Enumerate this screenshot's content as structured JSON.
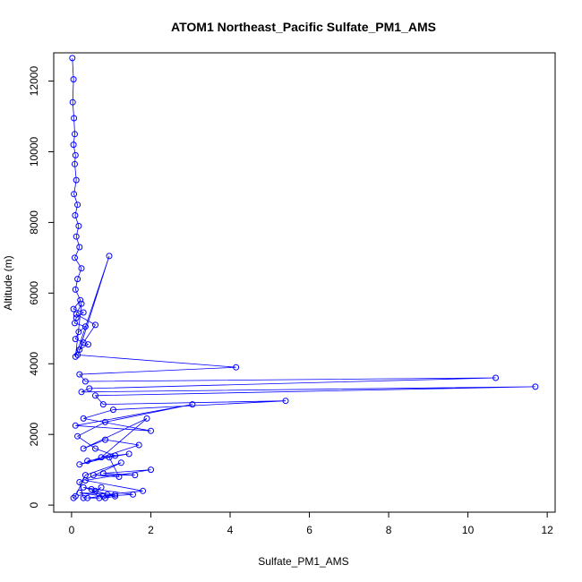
{
  "chart_data": {
    "type": "line",
    "title": "ATOM1 Northeast_Pacific Sulfate_PM1_AMS",
    "xlabel": "Sulfate_PM1_AMS",
    "ylabel": "Altitude (m)",
    "xlim": [
      -0.45,
      12.2
    ],
    "ylim": [
      -200,
      12800
    ],
    "xticks": [
      0,
      2,
      4,
      6,
      8,
      10,
      12
    ],
    "yticks": [
      0,
      2000,
      4000,
      6000,
      8000,
      10000,
      12000
    ],
    "grid": false,
    "legend": "none",
    "series_color": "#0000ff",
    "series": [
      {
        "x": [
          0.02,
          0.05,
          0.03,
          0.06,
          0.08,
          0.05,
          0.1,
          0.08,
          0.12,
          0.06,
          0.15,
          0.09,
          0.18,
          0.12,
          0.2,
          0.08,
          0.25,
          0.15,
          0.1,
          0.22,
          0.05,
          0.3,
          0.12,
          0.08,
          0.35,
          0.18,
          0.1,
          0.42,
          0.2,
          0.95,
          0.1,
          0.25,
          0.12,
          0.6,
          0.3,
          0.15,
          4.15,
          0.2,
          0.35,
          10.7,
          0.45,
          0.25,
          11.7,
          0.6,
          0.8,
          5.4,
          1.05,
          0.3,
          2.0,
          0.1,
          3.05,
          0.85,
          0.15,
          0.6,
          1.1,
          0.2,
          1.7,
          0.85,
          0.3,
          1.9,
          0.75,
          1.45,
          0.4,
          0.95,
          1.2,
          0.55,
          1.6,
          0.8,
          2.0,
          0.35,
          1.8,
          0.9,
          0.3,
          1.55,
          0.8,
          0.2,
          1.1,
          0.4,
          0.7,
          0.5,
          0.85,
          1.1,
          0.6,
          0.75,
          0.3,
          0.2,
          1.25,
          0.35,
          0.1,
          0.05
        ],
        "y": [
          12650,
          12050,
          11400,
          10950,
          10500,
          10200,
          9900,
          9650,
          9200,
          8800,
          8500,
          8200,
          7900,
          7600,
          7300,
          7000,
          6700,
          6400,
          6100,
          5800,
          5550,
          5450,
          5300,
          5150,
          5050,
          4900,
          4700,
          4550,
          4400,
          7050,
          4200,
          5700,
          5400,
          5100,
          4600,
          4250,
          3900,
          3700,
          3500,
          3600,
          3300,
          3200,
          3350,
          3100,
          2850,
          2950,
          2700,
          2450,
          2100,
          2250,
          2850,
          2350,
          1950,
          1600,
          1400,
          1150,
          1700,
          1850,
          1600,
          2450,
          1350,
          1450,
          1250,
          1350,
          800,
          850,
          850,
          900,
          1000,
          700,
          400,
          300,
          500,
          300,
          250,
          350,
          300,
          200,
          200,
          450,
          200,
          250,
          400,
          500,
          200,
          650,
          1200,
          850,
          250,
          200
        ]
      }
    ]
  }
}
